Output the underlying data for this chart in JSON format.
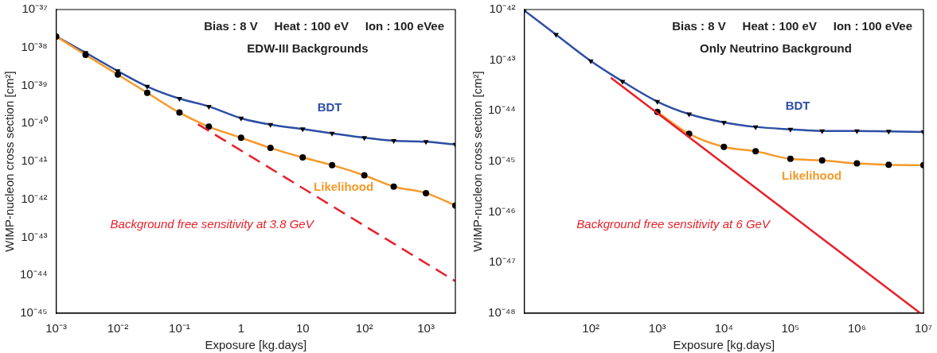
{
  "chart_data": [
    {
      "type": "line",
      "title": "EDW-III Backgrounds",
      "annotations": [
        "Bias : 8 V     Heat : 100 eV     Ion : 100 eVee"
      ],
      "xlabel": "Exposure [kg.days]",
      "ylabel": "WIMP-nucleon cross section [cm²]",
      "log": "xy",
      "grid": false,
      "legend": false,
      "xlim": [
        0.001,
        3000
      ],
      "xticks": [
        {
          "value": 0.001,
          "label": "10⁻³"
        },
        {
          "value": 0.01,
          "label": "10⁻²"
        },
        {
          "value": 0.1,
          "label": "10⁻¹"
        },
        1,
        10,
        {
          "value": 100,
          "label": "10²"
        },
        {
          "value": 1000,
          "label": "10³"
        }
      ],
      "ylim": [
        1e-45,
        1e-37
      ],
      "yticks": [
        {
          "value": 1e-45,
          "label": "10⁻⁴⁵"
        },
        {
          "value": 1e-44,
          "label": "10⁻⁴⁴"
        },
        {
          "value": 1e-43,
          "label": "10⁻⁴³"
        },
        {
          "value": 1e-42,
          "label": "10⁻⁴²"
        },
        {
          "value": 1e-41,
          "label": "10⁻⁴¹"
        },
        {
          "value": 1e-40,
          "label": "10⁻⁴⁰"
        },
        {
          "value": 1e-39,
          "label": "10⁻³⁹"
        },
        {
          "value": 1e-38,
          "label": "10⁻³⁸"
        },
        {
          "value": 1e-37,
          "label": "10⁻³⁷"
        }
      ],
      "series": [
        {
          "name": "Background free sensitivity at 3.8 GeV",
          "color": "#e8202a",
          "marker": "none",
          "line_style": "dashed",
          "x": [
            0.2,
            3000
          ],
          "values": [
            9.5e-41,
            7e-45
          ]
        },
        {
          "name": "Likelihood",
          "color": "#f59a2a",
          "marker": "circle",
          "line_style": "solid",
          "x": [
            0.001,
            0.003,
            0.01,
            0.03,
            0.1,
            0.3,
            1,
            3,
            10,
            30,
            100,
            300,
            1000,
            3000
          ],
          "values": [
            1.95e-38,
            6.4e-39,
            1.94e-39,
            6.4e-40,
            1.93e-40,
            8.2e-41,
            4.2e-41,
            2.26e-41,
            1.27e-41,
            8e-42,
            4.3e-42,
            2.17e-42,
            1.46e-42,
            6.9e-43
          ]
        },
        {
          "name": "BDT",
          "color": "#2c4ea3",
          "marker": "triangle",
          "line_style": "solid",
          "x": [
            0.001,
            0.003,
            0.01,
            0.03,
            0.1,
            0.3,
            1,
            3,
            10,
            30,
            100,
            300,
            1000,
            3000
          ],
          "values": [
            1.95e-38,
            7.3e-39,
            2.4e-39,
            9.4e-40,
            4.5e-40,
            2.8e-40,
            1.37e-40,
            9.3e-41,
            7.1e-41,
            5.5e-41,
            4.2e-41,
            3.5e-41,
            3.3e-41,
            2.8e-41
          ]
        }
      ]
    },
    {
      "type": "line",
      "title": "Only Neutrino Background",
      "annotations": [
        "Bias : 8 V     Heat : 100 eV     Ion : 100 eVee"
      ],
      "xlabel": "Exposure [kg.days]",
      "ylabel": "WIMP-nucleon cross section [cm²]",
      "log": "xy",
      "grid": false,
      "legend": false,
      "xlim": [
        10,
        10000000
      ],
      "xticks": [
        {
          "value": 100,
          "label": "10²"
        },
        {
          "value": 1000,
          "label": "10³"
        },
        {
          "value": 10000,
          "label": "10⁴"
        },
        {
          "value": 100000,
          "label": "10⁵"
        },
        {
          "value": 1000000,
          "label": "10⁶"
        },
        {
          "value": 10000000,
          "label": "10⁷"
        }
      ],
      "ylim": [
        1e-48,
        1e-42
      ],
      "yticks": [
        {
          "value": 1e-48,
          "label": "10⁻⁴⁸"
        },
        {
          "value": 1e-47,
          "label": "10⁻⁴⁷"
        },
        {
          "value": 1e-46,
          "label": "10⁻⁴⁶"
        },
        {
          "value": 1e-45,
          "label": "10⁻⁴⁵"
        },
        {
          "value": 1e-44,
          "label": "10⁻⁴⁴"
        },
        {
          "value": 1e-43,
          "label": "10⁻⁴³"
        },
        {
          "value": 1e-42,
          "label": "10⁻⁴²"
        }
      ],
      "series": [
        {
          "name": "Background free sensitivity at 6 GeV",
          "color": "#e8202a",
          "marker": "none",
          "line_style": "solid",
          "x": [
            200,
            9000000
          ],
          "values": [
            4.5e-44,
            1e-48
          ]
        },
        {
          "name": "Likelihood",
          "color": "#f59a2a",
          "marker": "circle",
          "line_style": "solid",
          "x": [
            1000,
            3000,
            10000,
            30000,
            100000,
            300000,
            1000000,
            3000000,
            10000000
          ],
          "values": [
            9.5e-45,
            3.5e-45,
            1.94e-45,
            1.58e-45,
            1.12e-45,
            1.05e-45,
            9.1e-46,
            8.6e-46,
            8.4e-46
          ]
        },
        {
          "name": "BDT",
          "color": "#2c4ea3",
          "marker": "triangle",
          "line_style": "solid",
          "x": [
            10,
            30,
            100,
            300,
            1000,
            3000,
            10000,
            30000,
            100000,
            300000,
            1000000,
            3000000,
            10000000
          ],
          "values": [
            9.6e-43,
            3.2e-43,
            9.6e-44,
            3.8e-44,
            1.52e-44,
            8.6e-45,
            5.9e-45,
            4.8e-45,
            4.3e-45,
            4e-45,
            4e-45,
            3.9e-45,
            3.8e-45
          ]
        }
      ]
    }
  ]
}
